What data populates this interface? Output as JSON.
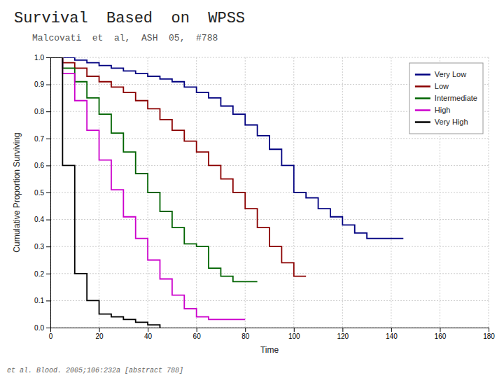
{
  "chart_data": {
    "type": "step",
    "title": "Survival  Based  on  WPSS",
    "subtitle": "Malcovati  et  al,  ASH  05,  #788",
    "annotations": [
      "et al. Blood. 2005;106:232a [abstract 788]"
    ],
    "x_label": "Time",
    "y_label": "Cumulative Proportion Surviving",
    "xlim": [
      0,
      180
    ],
    "ylim": [
      0.0,
      1.0
    ],
    "xticks": [
      0,
      20,
      40,
      60,
      80,
      100,
      120,
      140,
      160,
      180
    ],
    "yticks": [
      {
        "value": 0.0,
        "label": "0.0"
      },
      0.1,
      0.2,
      0.3,
      0.4,
      0.5,
      0.6,
      0.7,
      0.8,
      0.9,
      {
        "value": 1.0,
        "label": "1.0"
      }
    ],
    "grid": true,
    "legend": "upper right",
    "series": [
      {
        "name": "Very Low",
        "color": "#000080",
        "x": [
          0,
          5,
          10,
          15,
          20,
          25,
          30,
          35,
          40,
          45,
          50,
          55,
          60,
          65,
          70,
          75,
          80,
          85,
          90,
          95,
          100,
          105,
          110,
          115,
          120,
          125,
          130,
          135,
          140,
          145
        ],
        "values": [
          1.0,
          1.0,
          0.99,
          0.98,
          0.97,
          0.96,
          0.95,
          0.94,
          0.93,
          0.92,
          0.91,
          0.89,
          0.87,
          0.85,
          0.82,
          0.79,
          0.75,
          0.71,
          0.66,
          0.6,
          0.5,
          0.48,
          0.44,
          0.41,
          0.38,
          0.35,
          0.33,
          0.33,
          0.33,
          0.33
        ]
      },
      {
        "name": "Low",
        "color": "#8b0000",
        "x": [
          0,
          5,
          10,
          15,
          20,
          25,
          30,
          35,
          40,
          45,
          50,
          55,
          60,
          65,
          70,
          75,
          80,
          85,
          90,
          95,
          100,
          105
        ],
        "values": [
          1.0,
          0.98,
          0.96,
          0.93,
          0.91,
          0.89,
          0.87,
          0.84,
          0.81,
          0.77,
          0.73,
          0.69,
          0.65,
          0.6,
          0.55,
          0.5,
          0.44,
          0.37,
          0.3,
          0.24,
          0.19,
          0.19
        ]
      },
      {
        "name": "Intermediate",
        "color": "#006400",
        "x": [
          0,
          5,
          10,
          15,
          20,
          25,
          30,
          35,
          40,
          45,
          50,
          55,
          60,
          65,
          70,
          75,
          80,
          85
        ],
        "values": [
          1.0,
          0.96,
          0.91,
          0.85,
          0.79,
          0.72,
          0.65,
          0.57,
          0.5,
          0.43,
          0.37,
          0.31,
          0.3,
          0.22,
          0.19,
          0.17,
          0.17,
          0.17
        ]
      },
      {
        "name": "High",
        "color": "#cc00cc",
        "x": [
          0,
          5,
          10,
          15,
          20,
          25,
          30,
          35,
          40,
          45,
          50,
          55,
          60,
          65,
          70,
          75,
          80
        ],
        "values": [
          1.0,
          0.94,
          0.84,
          0.73,
          0.62,
          0.51,
          0.41,
          0.33,
          0.25,
          0.18,
          0.12,
          0.07,
          0.04,
          0.03,
          0.03,
          0.03,
          0.03
        ]
      },
      {
        "name": "Very High",
        "color": "#000000",
        "x": [
          0,
          5,
          10,
          15,
          20,
          25,
          30,
          35,
          40,
          45
        ],
        "values": [
          1.0,
          0.6,
          0.2,
          0.1,
          0.05,
          0.04,
          0.03,
          0.02,
          0.01,
          0.0
        ]
      }
    ]
  }
}
